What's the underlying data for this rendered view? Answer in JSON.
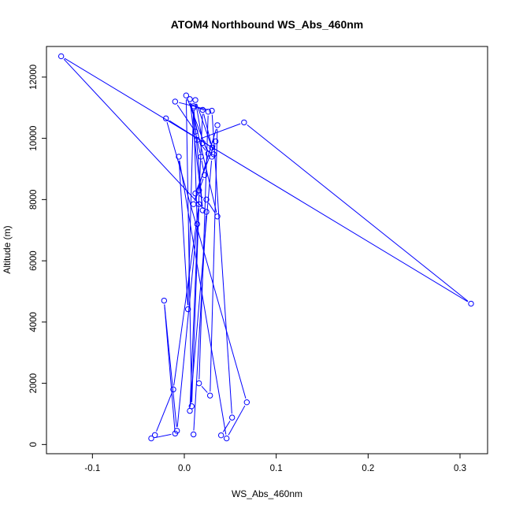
{
  "chart_data": {
    "type": "line",
    "title": "ATOM4 Northbound WS_Abs_460nm",
    "xlabel": "WS_Abs_460nm",
    "ylabel": "Altitude (m)",
    "xlim": [
      -0.15,
      0.33
    ],
    "ylim": [
      -300,
      13000
    ],
    "xticks": [
      -0.1,
      0.0,
      0.1,
      0.2,
      0.3
    ],
    "xtick_labels": [
      "-0.1",
      "0.0",
      "0.1",
      "0.2",
      "0.3"
    ],
    "yticks": [
      0,
      2000,
      4000,
      6000,
      8000,
      10000,
      12000
    ],
    "ytick_labels": [
      "0",
      "2000",
      "4000",
      "6000",
      "8000",
      "10000",
      "12000"
    ],
    "markers": "open-circle",
    "line_color": "#0000ff",
    "grid": false,
    "legend": "none",
    "series": [
      {
        "x": [
          0.04,
          0.052,
          0.03,
          -0.01,
          0.012,
          0.018,
          0.022,
          0.016,
          0.01,
          0.036,
          0.028,
          0.016,
          0.026,
          0.01,
          0.02,
          0.006,
          0.036,
          0.024,
          0.012,
          0.034,
          0.032,
          0.02,
          0.006,
          0.03,
          0.02,
          0.012,
          0.03,
          -0.02,
          0.068,
          0.046,
          -0.006,
          0.004,
          0.01,
          0.014,
          -0.008,
          -0.022,
          -0.01,
          -0.036,
          -0.032,
          -0.012,
          0.016,
          0.008,
          0.002,
          0.026,
          0.014,
          0.065,
          0.312,
          -0.134,
          0.024,
          0.01
        ],
        "y": [
          300,
          880,
          10900,
          11200,
          10220,
          9400,
          8800,
          8300,
          7850,
          10430,
          1600,
          2000,
          10870,
          11050,
          7650,
          11280,
          7450,
          8000,
          8200,
          9900,
          9480,
          10930,
          1100,
          9400,
          9850,
          11250,
          9700,
          10650,
          1380,
          200,
          9400,
          4420,
          11000,
          7200,
          450,
          4700,
          360,
          200,
          310,
          1800,
          7850,
          1250,
          11400,
          9500,
          9950,
          10520,
          4600,
          12680,
          7600,
          330
        ]
      }
    ]
  }
}
